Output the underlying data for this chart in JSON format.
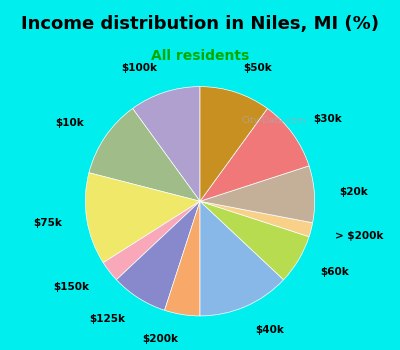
{
  "title": "Income distribution in Niles, MI (%)",
  "subtitle": "All residents",
  "title_color": "#000000",
  "subtitle_color": "#00aa00",
  "bg_outer": "#00eeee",
  "bg_inner": "#dff0df",
  "watermark": "City-Data.com",
  "labels": [
    "$100k",
    "$10k",
    "$75k",
    "$150k",
    "$125k",
    "$200k",
    "$40k",
    "$60k",
    "> $200k",
    "$20k",
    "$30k",
    "$50k"
  ],
  "values": [
    10,
    11,
    13,
    3,
    8,
    5,
    13,
    7,
    2,
    8,
    10,
    10
  ],
  "colors": [
    "#b0a0d0",
    "#a0bc88",
    "#f0e868",
    "#f8a8b8",
    "#8888cc",
    "#f8a868",
    "#88b8e8",
    "#b8dc50",
    "#f8d088",
    "#c4b098",
    "#f07878",
    "#c89020"
  ],
  "startangle": 90,
  "label_fontsize": 7.5,
  "title_fontsize": 13,
  "subtitle_fontsize": 10
}
